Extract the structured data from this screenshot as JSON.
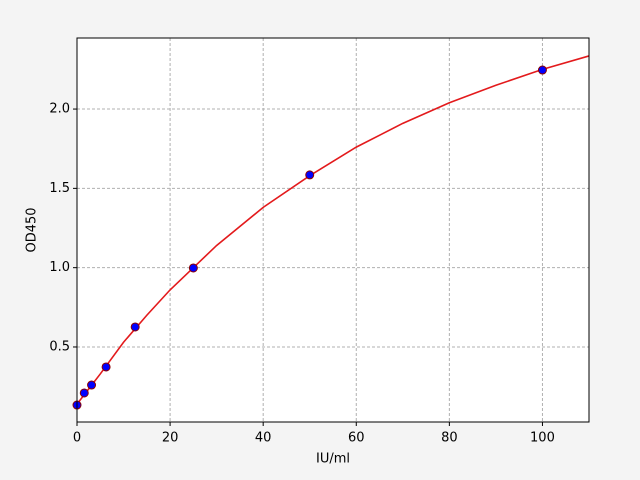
{
  "chart_data": {
    "type": "scatter",
    "xlabel": "IU/ml",
    "ylabel": "OD450",
    "xlim": [
      0,
      110
    ],
    "ylim": [
      0.027,
      2.448
    ],
    "xticks": [
      0,
      20,
      40,
      60,
      80,
      100
    ],
    "yticks": [
      0.5,
      {
        "value": 1,
        "label": "1.0"
      },
      1.5,
      {
        "value": 2,
        "label": "2.0"
      }
    ],
    "grid": true,
    "series": [
      {
        "type": "line",
        "color": "#e31a1c",
        "x": [
          0,
          5,
          10,
          15,
          20,
          25,
          30,
          40,
          50,
          60,
          70,
          80,
          90,
          100,
          110
        ],
        "values": [
          0.14,
          0.33,
          0.53,
          0.7,
          0.86,
          1.0,
          1.14,
          1.38,
          1.58,
          1.76,
          1.91,
          2.04,
          2.15,
          2.25,
          2.335
        ]
      },
      {
        "type": "scatter",
        "color": "#0000ff",
        "edgecolor": "#8b0000",
        "x": [
          0,
          1.5625,
          3.125,
          6.25,
          12.5,
          25,
          50,
          100
        ],
        "values": [
          0.134,
          0.21,
          0.26,
          0.374,
          0.626,
          0.998,
          1.585,
          2.246
        ]
      }
    ]
  }
}
